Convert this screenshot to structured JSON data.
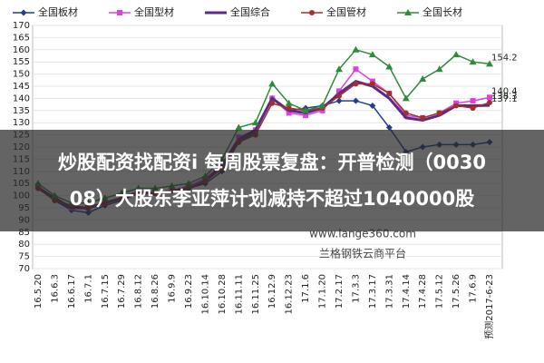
{
  "chart_data": {
    "type": "line",
    "categories": [
      "16.5.20",
      "16.6.3",
      "16.6.17",
      "16.7.1",
      "16.7.15",
      "16.7.29",
      "16.8.12",
      "16.8.26",
      "16.9.9",
      "16.9.23",
      "16.10.14",
      "16.10.28",
      "16.11.11",
      "16.11.25",
      "16.12.9",
      "16.12.23",
      "17.1.6",
      "17.1.20",
      "17.2.17",
      "17.3.3",
      "17.3.17",
      "17.3.31",
      "17.4.14",
      "17.4.28",
      "17.5.12",
      "17.5.26",
      "17.6.9",
      "预测2017-6-23"
    ],
    "series": [
      {
        "name": "全国板材",
        "color": "#1f3f8f",
        "marker": "diamond",
        "values": [
          103,
          98,
          94,
          93,
          96,
          98,
          101,
          101,
          102,
          103,
          105,
          110,
          122,
          126,
          140,
          135,
          136,
          137,
          139,
          139,
          137,
          128,
          118,
          120,
          121,
          121,
          121,
          122
        ]
      },
      {
        "name": "全国型材",
        "color": "#e040e0",
        "marker": "square",
        "values": [
          104,
          99,
          95,
          95,
          97,
          99,
          102,
          101,
          102,
          104,
          107,
          113,
          124,
          127,
          140,
          134,
          133,
          135,
          143,
          152,
          147,
          142,
          133,
          132,
          134,
          138,
          139,
          140.4
        ]
      },
      {
        "name": "全国综合",
        "color": "#5b2a86",
        "marker": "none",
        "values": [
          103,
          99,
          95,
          95,
          97,
          99,
          101,
          101,
          102,
          103,
          106,
          112,
          123,
          127,
          140,
          135,
          134,
          136,
          142,
          147,
          145,
          140,
          132,
          131,
          133,
          137,
          137,
          137.1
        ]
      },
      {
        "name": "全国管材",
        "color": "#a0302a",
        "marker": "circle",
        "values": [
          103,
          98,
          96,
          95,
          97,
          99,
          101,
          101,
          102,
          103,
          106,
          111,
          122,
          125,
          138,
          136,
          135,
          136,
          141,
          146,
          146,
          142,
          134,
          132,
          134,
          137,
          136,
          138.3
        ]
      },
      {
        "name": "全国长材",
        "color": "#2e8b3a",
        "marker": "triangle",
        "values": [
          105,
          100,
          97,
          97,
          99,
          101,
          103,
          103,
          104,
          105,
          108,
          115,
          128,
          130,
          146,
          138,
          135,
          137,
          152,
          160,
          158,
          153,
          140,
          148,
          152,
          158,
          155,
          154.2
        ]
      }
    ],
    "labeled_series": [
      1,
      2,
      3,
      4
    ],
    "ylim": [
      70,
      170
    ],
    "yticks": [
      70,
      75,
      80,
      85,
      90,
      95,
      100,
      105,
      110,
      115,
      120,
      125,
      130,
      135,
      140,
      145,
      150,
      155,
      160,
      165,
      170
    ],
    "grid": true,
    "watermark": [
      "www.lange360.com",
      "兰格钢铁云商平台"
    ]
  },
  "banner": {
    "lines": [
      "炒股配资找配资i 每周股票复盘：开普检测（0030",
      "08）大股东李亚萍计划减持不超过1040000股"
    ]
  }
}
